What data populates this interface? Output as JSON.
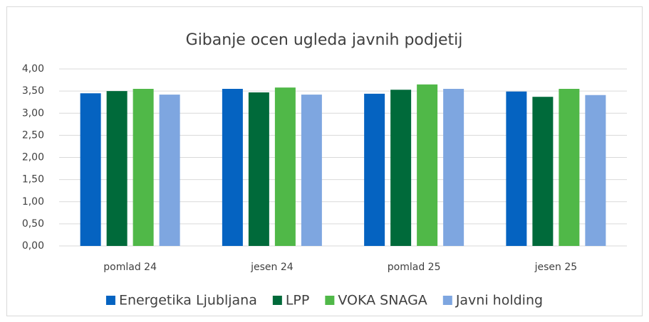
{
  "chart_data": {
    "type": "bar",
    "title": "Gibanje ocen ugleda javnih podjetij",
    "categories": [
      "pomlad 24",
      "jesen 24",
      "pomlad 25",
      "jesen 25"
    ],
    "series": [
      {
        "name": "Energetika Ljubljana",
        "color": "#0563c1",
        "values": [
          3.45,
          3.55,
          3.44,
          3.49
        ]
      },
      {
        "name": "LPP",
        "color": "#006a3a",
        "values": [
          3.5,
          3.47,
          3.53,
          3.37
        ]
      },
      {
        "name": "VOKA SNAGA",
        "color": "#50b848",
        "values": [
          3.55,
          3.58,
          3.65,
          3.55
        ]
      },
      {
        "name": "Javni holding",
        "color": "#7ea6e0",
        "values": [
          3.42,
          3.42,
          3.55,
          3.41
        ]
      }
    ],
    "ylim": [
      0,
      4
    ],
    "yticks": [
      {
        "value": 0,
        "label": "0,00"
      },
      {
        "value": 0.5,
        "label": "0,50"
      },
      {
        "value": 1,
        "label": "1,00"
      },
      {
        "value": 1.5,
        "label": "1,50"
      },
      {
        "value": 2,
        "label": "2,00"
      },
      {
        "value": 2.5,
        "label": "2,50"
      },
      {
        "value": 3,
        "label": "3,00"
      },
      {
        "value": 3.5,
        "label": "3,50"
      },
      {
        "value": 4,
        "label": "4,00"
      }
    ],
    "grid": true,
    "legend": "bottom"
  }
}
